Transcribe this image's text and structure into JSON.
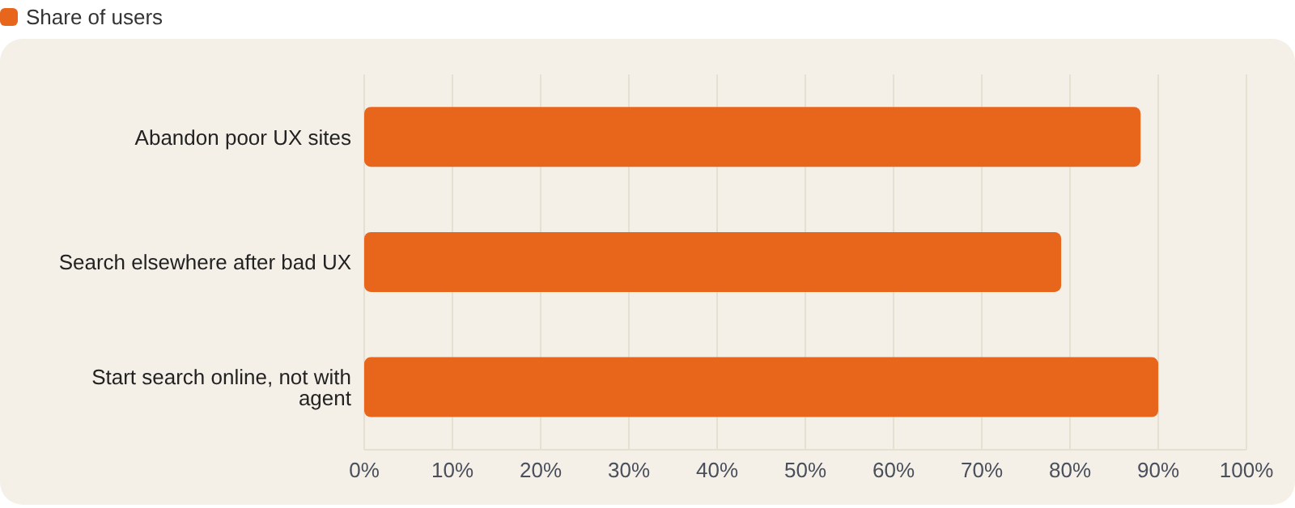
{
  "chart_data": {
    "type": "bar",
    "orientation": "horizontal",
    "categories": [
      "Abandon poor UX sites",
      "Search elsewhere after bad UX",
      "Start search online, not with agent"
    ],
    "series": [
      {
        "name": "Share of users",
        "color": "#e8651c",
        "values": [
          88,
          79,
          90
        ]
      }
    ],
    "xlim": [
      0,
      100
    ],
    "xticks": [
      {
        "value": 0,
        "label": "0%"
      },
      {
        "value": 10,
        "label": "10%"
      },
      {
        "value": 20,
        "label": "20%"
      },
      {
        "value": 30,
        "label": "30%"
      },
      {
        "value": 40,
        "label": "40%"
      },
      {
        "value": 50,
        "label": "50%"
      },
      {
        "value": 60,
        "label": "60%"
      },
      {
        "value": 70,
        "label": "70%"
      },
      {
        "value": 80,
        "label": "80%"
      },
      {
        "value": 90,
        "label": "90%"
      },
      {
        "value": 100,
        "label": "100%"
      }
    ],
    "grid": "x",
    "legend": "top left"
  }
}
